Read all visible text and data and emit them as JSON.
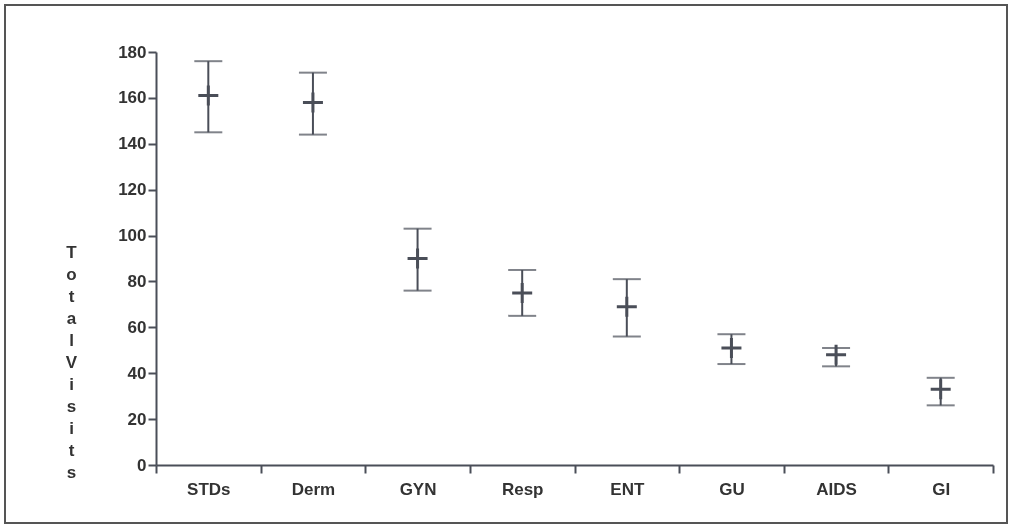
{
  "chart_data": {
    "type": "scatter",
    "ylabel": "Total Visits",
    "categories": [
      "STDs",
      "Derm",
      "GYN",
      "Resp",
      "ENT",
      "GU",
      "AIDS",
      "GI"
    ],
    "values": [
      161,
      158,
      90,
      75,
      69,
      51,
      48,
      33
    ],
    "errors": [
      [
        145,
        176
      ],
      [
        144,
        171
      ],
      [
        76,
        103
      ],
      [
        65,
        85
      ],
      [
        56,
        81
      ],
      [
        44,
        57
      ],
      [
        43,
        51
      ],
      [
        26,
        38
      ]
    ],
    "color": "#4a4e58",
    "ylim": [
      0,
      180
    ],
    "yticks": [
      0,
      20,
      40,
      60,
      80,
      100,
      120,
      140,
      160,
      180
    ],
    "grid": false,
    "marker": "cross"
  }
}
